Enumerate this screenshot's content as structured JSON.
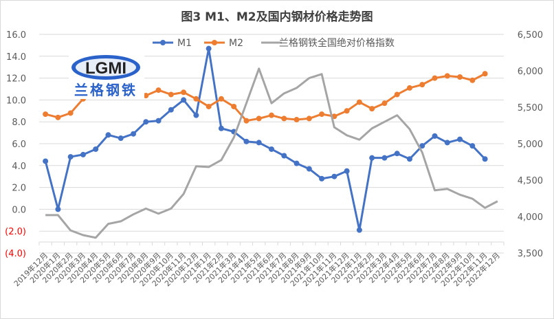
{
  "chart_data": {
    "type": "line",
    "title": "图3 M1、M2及国内钢材价格走势图",
    "categories": [
      "2019年12月",
      "2020年1月",
      "2020年2月",
      "2020年3月",
      "2020年4月",
      "2020年5月",
      "2020年6月",
      "2020年7月",
      "2020年8月",
      "2020年9月",
      "2020年10月",
      "2020年11月",
      "2020年12月",
      "2021年1月",
      "2021年2月",
      "2021年3月",
      "2021年4月",
      "2021年5月",
      "2021年6月",
      "2021年7月",
      "2021年8月",
      "2021年9月",
      "2021年10月",
      "2021年11月",
      "2021年12月",
      "2022年1月",
      "2022年2月",
      "2022年3月",
      "2022年4月",
      "2022年5月",
      "2022年6月",
      "2022年7月",
      "2022年8月",
      "2022年9月",
      "2022年10月",
      "2022年11月",
      "2022年12月"
    ],
    "series": [
      {
        "name": "M1",
        "axis": "left",
        "color": "#4472C4",
        "markers": true,
        "values": [
          4.4,
          0.0,
          4.8,
          5.0,
          5.5,
          6.8,
          6.5,
          6.9,
          8.0,
          8.1,
          9.1,
          10.0,
          8.6,
          14.7,
          7.4,
          7.1,
          6.2,
          6.1,
          5.5,
          4.9,
          4.2,
          3.7,
          2.8,
          3.0,
          3.5,
          -1.9,
          4.7,
          4.7,
          5.1,
          4.6,
          5.8,
          6.7,
          6.1,
          6.4,
          5.8,
          4.6,
          null
        ]
      },
      {
        "name": "M2",
        "axis": "left",
        "color": "#ED7D31",
        "markers": true,
        "values": [
          8.7,
          8.4,
          8.8,
          10.1,
          11.1,
          11.1,
          11.1,
          10.7,
          10.4,
          10.9,
          10.5,
          10.7,
          10.1,
          9.4,
          10.1,
          9.4,
          8.1,
          8.3,
          8.6,
          8.3,
          8.2,
          8.3,
          8.7,
          8.5,
          9.0,
          9.8,
          9.2,
          9.7,
          10.5,
          11.1,
          11.4,
          12.0,
          12.2,
          12.1,
          11.8,
          12.4,
          null
        ]
      },
      {
        "name": "兰格钢铁全国绝对价格指数",
        "axis": "right",
        "color": "#A5A5A5",
        "markers": false,
        "values": [
          4020,
          4020,
          3810,
          3745,
          3710,
          3900,
          3935,
          4030,
          4110,
          4040,
          4110,
          4310,
          4690,
          4680,
          4775,
          5085,
          5555,
          6030,
          5555,
          5690,
          5765,
          5900,
          5955,
          5225,
          5115,
          5055,
          5210,
          5300,
          5390,
          5200,
          4880,
          4360,
          4380,
          4300,
          4245,
          4120,
          4210
        ]
      }
    ],
    "left_axis": {
      "ylim": [
        -4,
        16
      ],
      "ticks": [
        "16.0",
        "14.0",
        "12.0",
        "10.0",
        "8.0",
        "6.0",
        "4.0",
        "2.0",
        "0.0",
        "(2.0)",
        "(4.0)"
      ],
      "negative_color": "#FF0000"
    },
    "right_axis": {
      "ylim": [
        3500,
        6500
      ],
      "ticks": [
        "6,500",
        "6,000",
        "5,500",
        "5,000",
        "4,500",
        "4,000",
        "3,500"
      ]
    },
    "grid": true,
    "legend": "top"
  },
  "logo": {
    "latin": "LGMI",
    "chinese": "兰格钢铁"
  }
}
